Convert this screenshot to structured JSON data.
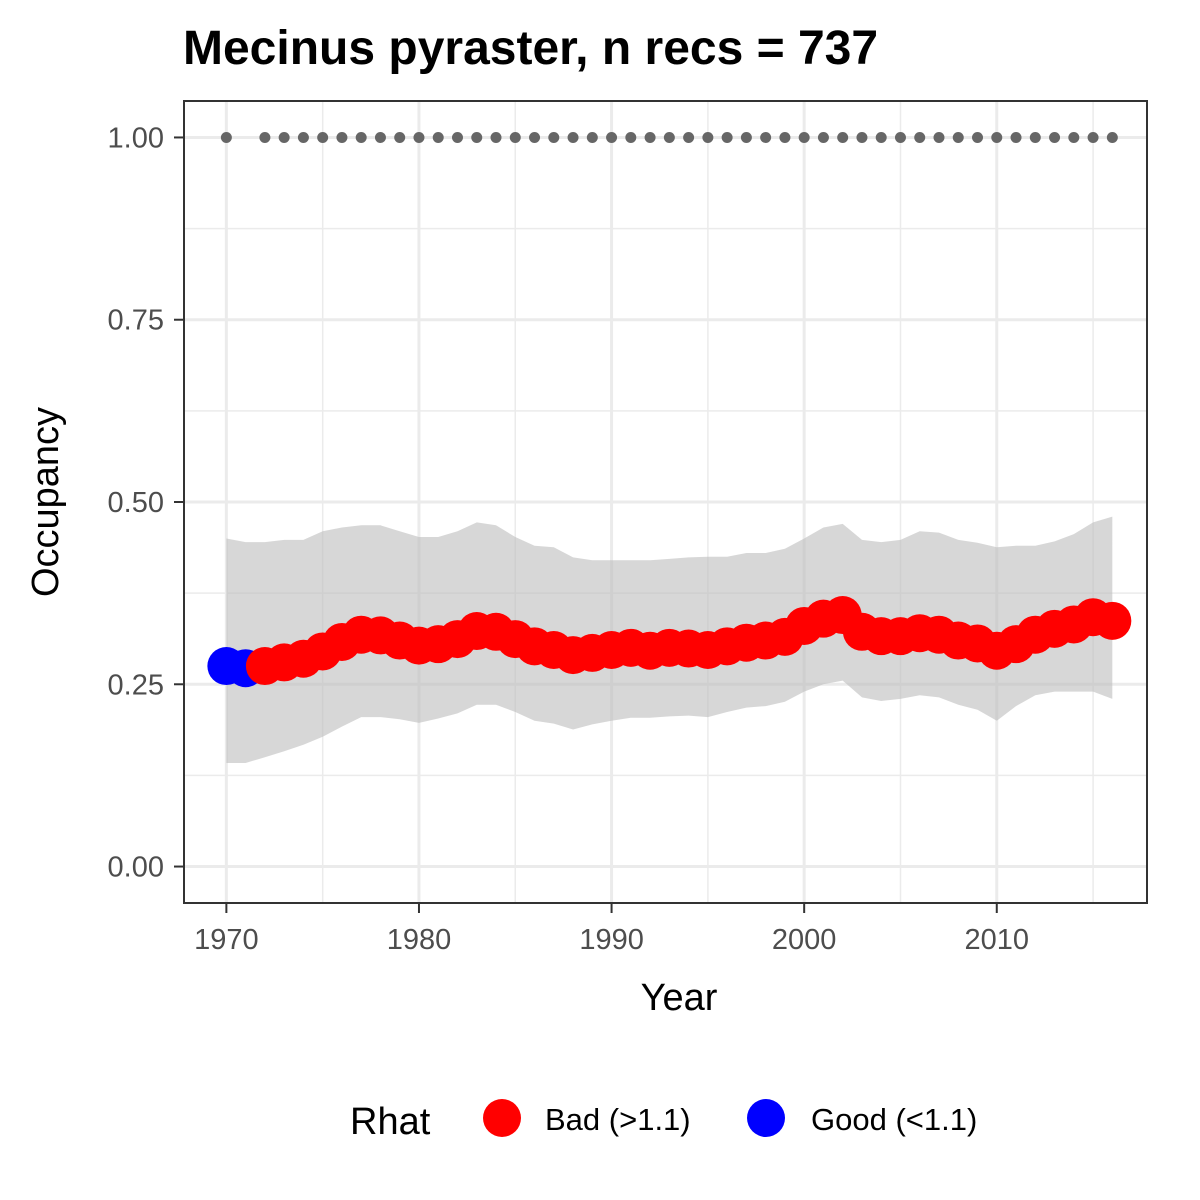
{
  "chart_data": {
    "type": "line",
    "title": "Mecinus pyraster, n recs = 737",
    "xlabel": "Year",
    "ylabel": "Occupancy",
    "xlim": [
      1967.8,
      2017.8
    ],
    "ylim": [
      -0.05,
      1.05
    ],
    "x_ticks": [
      1970,
      1980,
      1990,
      2000,
      2010
    ],
    "x_tick_labels": [
      "1970",
      "1980",
      "1990",
      "2000",
      "2010"
    ],
    "y_ticks": [
      0,
      0.25,
      0.5,
      0.75,
      1.0
    ],
    "y_tick_labels": [
      "0.00",
      "0.25",
      "0.50",
      "0.75",
      "1.00"
    ],
    "grid": true,
    "years": [
      1970,
      1971,
      1972,
      1973,
      1974,
      1975,
      1976,
      1977,
      1978,
      1979,
      1980,
      1981,
      1982,
      1983,
      1984,
      1985,
      1986,
      1987,
      1988,
      1989,
      1990,
      1991,
      1992,
      1993,
      1994,
      1995,
      1996,
      1997,
      1998,
      1999,
      2000,
      2001,
      2002,
      2003,
      2004,
      2005,
      2006,
      2007,
      2008,
      2009,
      2010,
      2011,
      2012,
      2013,
      2014,
      2015,
      2016
    ],
    "occupancy": [
      0.275,
      0.272,
      0.275,
      0.28,
      0.285,
      0.295,
      0.308,
      0.318,
      0.317,
      0.31,
      0.303,
      0.305,
      0.312,
      0.323,
      0.322,
      0.312,
      0.302,
      0.297,
      0.29,
      0.293,
      0.297,
      0.3,
      0.296,
      0.3,
      0.299,
      0.297,
      0.302,
      0.307,
      0.31,
      0.315,
      0.33,
      0.34,
      0.345,
      0.322,
      0.316,
      0.316,
      0.32,
      0.318,
      0.31,
      0.306,
      0.296,
      0.305,
      0.318,
      0.326,
      0.332,
      0.342,
      0.337
    ],
    "upper": [
      0.45,
      0.445,
      0.445,
      0.448,
      0.448,
      0.46,
      0.465,
      0.468,
      0.468,
      0.46,
      0.452,
      0.452,
      0.46,
      0.472,
      0.468,
      0.452,
      0.44,
      0.438,
      0.424,
      0.42,
      0.42,
      0.42,
      0.42,
      0.422,
      0.424,
      0.425,
      0.425,
      0.43,
      0.43,
      0.436,
      0.45,
      0.465,
      0.47,
      0.448,
      0.445,
      0.448,
      0.46,
      0.458,
      0.448,
      0.444,
      0.438,
      0.44,
      0.44,
      0.446,
      0.456,
      0.472,
      0.48
    ],
    "lower": [
      0.142,
      0.142,
      0.15,
      0.158,
      0.167,
      0.178,
      0.192,
      0.205,
      0.205,
      0.202,
      0.197,
      0.203,
      0.21,
      0.222,
      0.222,
      0.212,
      0.2,
      0.196,
      0.188,
      0.195,
      0.2,
      0.204,
      0.204,
      0.206,
      0.207,
      0.205,
      0.212,
      0.218,
      0.22,
      0.226,
      0.24,
      0.25,
      0.255,
      0.232,
      0.227,
      0.23,
      0.235,
      0.232,
      0.222,
      0.215,
      0.2,
      0.22,
      0.235,
      0.24,
      0.24,
      0.24,
      0.23
    ],
    "rhat": [
      "Good",
      "Good",
      "Bad",
      "Bad",
      "Bad",
      "Bad",
      "Bad",
      "Bad",
      "Bad",
      "Bad",
      "Bad",
      "Bad",
      "Bad",
      "Bad",
      "Bad",
      "Bad",
      "Bad",
      "Bad",
      "Bad",
      "Bad",
      "Bad",
      "Bad",
      "Bad",
      "Bad",
      "Bad",
      "Bad",
      "Bad",
      "Bad",
      "Bad",
      "Bad",
      "Bad",
      "Bad",
      "Bad",
      "Bad",
      "Bad",
      "Bad",
      "Bad",
      "Bad",
      "Bad",
      "Bad",
      "Bad",
      "Bad",
      "Bad",
      "Bad",
      "Bad",
      "Bad",
      "Bad"
    ],
    "record_years": [
      1970,
      1972,
      1973,
      1974,
      1975,
      1976,
      1977,
      1978,
      1979,
      1980,
      1981,
      1982,
      1983,
      1984,
      1985,
      1986,
      1987,
      1988,
      1989,
      1990,
      1991,
      1992,
      1993,
      1994,
      1995,
      1996,
      1997,
      1998,
      1999,
      2000,
      2001,
      2002,
      2003,
      2004,
      2005,
      2006,
      2007,
      2008,
      2009,
      2010,
      2011,
      2012,
      2013,
      2014,
      2015,
      2016
    ],
    "record_value": 1.0,
    "legend": {
      "title": "Rhat",
      "position": "bottom",
      "entries": [
        {
          "key": "Bad",
          "label": "Bad (>1.1)",
          "color": "#ff0000"
        },
        {
          "key": "Good",
          "label": "Good (<1.1)",
          "color": "#0000ff"
        }
      ]
    },
    "colors": {
      "ribbon": "#bdbdbd",
      "record_points": "#666666",
      "grid": "#ebebeb",
      "panel_border": "#333333"
    }
  }
}
